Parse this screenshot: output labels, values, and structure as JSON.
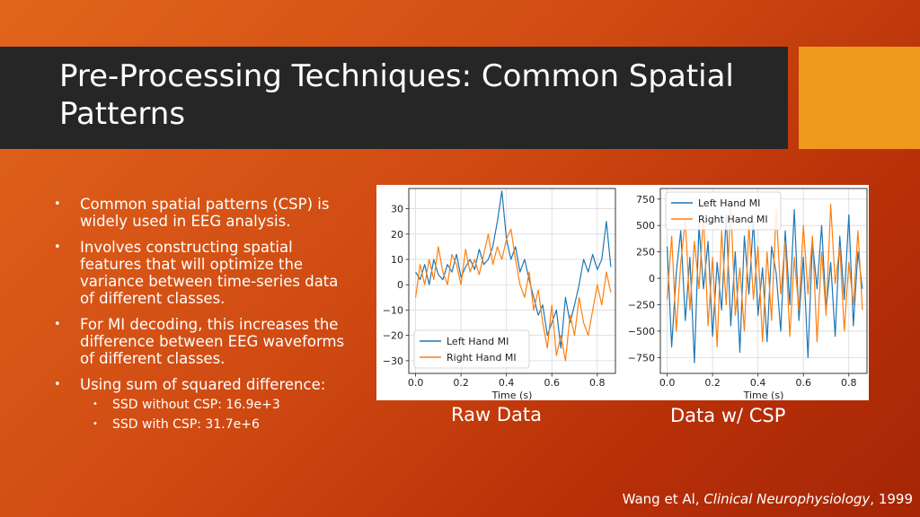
{
  "slide": {
    "title": "Pre-Processing Techniques: Common Spatial Patterns",
    "bullets": [
      {
        "text": "Common spatial patterns (CSP) is widely used in EEG analysis."
      },
      {
        "text": "Involves constructing spatial features that will optimize the variance between time-series data of different classes."
      },
      {
        "text": "For MI decoding, this increases the difference between EEG waveforms of different classes."
      },
      {
        "text": "Using sum of squared difference:"
      }
    ],
    "sub_bullets": [
      {
        "text": "SSD without CSP: 16.9e+3"
      },
      {
        "text": "SSD with CSP: 31.7e+6"
      }
    ],
    "bullet_glyph": "•",
    "caption_left": "Raw Data",
    "caption_right": "Data w/ CSP",
    "citation_prefix": "Wang et Al, ",
    "citation_journal": "Clinical Neurophysiology",
    "citation_suffix": ", 1999"
  },
  "colors": {
    "title_bar": "#262626",
    "accent": "#ef9a1c",
    "series_left": "#1f77b4",
    "series_right": "#ff7f0e"
  },
  "chart_data": [
    {
      "type": "line",
      "title": "",
      "xlabel": "Time (s)",
      "ylabel": "",
      "xlim": [
        -0.03,
        0.88
      ],
      "ylim": [
        -35,
        38
      ],
      "xticks": [
        0.0,
        0.2,
        0.4,
        0.6,
        0.8
      ],
      "xtick_labels": [
        "0.0",
        "0.2",
        "0.4",
        "0.6",
        "0.8"
      ],
      "yticks": [
        30,
        20,
        10,
        0,
        -10,
        -20,
        -30
      ],
      "ytick_labels": [
        "30",
        "20",
        "10",
        "0",
        "−10",
        "−20",
        "−30"
      ],
      "grid": true,
      "legend_position": "lower-left",
      "series": [
        {
          "name": "Left Hand MI",
          "x_start": 0.0,
          "x_step": 0.02,
          "values": [
            5,
            2,
            8,
            0,
            10,
            4,
            2,
            8,
            5,
            12,
            3,
            7,
            10,
            6,
            14,
            8,
            10,
            15,
            25,
            37,
            18,
            10,
            15,
            5,
            10,
            2,
            -5,
            -12,
            -8,
            -20,
            -15,
            -10,
            -25,
            -5,
            -15,
            -8,
            0,
            10,
            5,
            12,
            6,
            10,
            25,
            7
          ]
        },
        {
          "name": "Right Hand MI",
          "x_start": 0.0,
          "x_step": 0.02,
          "values": [
            -5,
            8,
            0,
            10,
            2,
            15,
            5,
            0,
            12,
            8,
            0,
            14,
            5,
            10,
            4,
            12,
            20,
            8,
            15,
            10,
            18,
            22,
            10,
            0,
            -5,
            5,
            -10,
            -2,
            -15,
            -25,
            -8,
            -28,
            -20,
            -30,
            -12,
            -20,
            -5,
            -15,
            -20,
            -10,
            0,
            -8,
            5,
            -3
          ]
        }
      ]
    },
    {
      "type": "line",
      "title": "",
      "xlabel": "Time (s)",
      "ylabel": "",
      "xlim": [
        -0.03,
        0.88
      ],
      "ylim": [
        -900,
        850
      ],
      "xticks": [
        0.0,
        0.2,
        0.4,
        0.6,
        0.8
      ],
      "xtick_labels": [
        "0.0",
        "0.2",
        "0.4",
        "0.6",
        "0.8"
      ],
      "yticks": [
        750,
        500,
        250,
        0,
        -250,
        -500,
        -750
      ],
      "ytick_labels": [
        "750",
        "500",
        "250",
        "0",
        "−250",
        "−500",
        "−750"
      ],
      "grid": true,
      "legend_position": "top-left",
      "series": [
        {
          "name": "Left Hand MI",
          "x_start": 0.0,
          "x_step": 0.02,
          "values": [
            300,
            -650,
            50,
            450,
            -400,
            200,
            -800,
            500,
            -100,
            350,
            -550,
            150,
            -300,
            600,
            -450,
            250,
            -700,
            400,
            -150,
            550,
            -350,
            100,
            -600,
            300,
            50,
            -500,
            450,
            -250,
            650,
            -400,
            200,
            -750,
            350,
            -100,
            500,
            -300,
            150,
            -550,
            400,
            -200,
            600,
            -450,
            250,
            -100
          ]
        },
        {
          "name": "Right Hand MI",
          "x_start": 0.0,
          "x_step": 0.02,
          "values": [
            -200,
            400,
            -500,
            150,
            550,
            -300,
            350,
            -100,
            600,
            -450,
            200,
            -650,
            450,
            -250,
            700,
            -350,
            100,
            -500,
            500,
            -200,
            300,
            -600,
            250,
            -400,
            650,
            -150,
            350,
            -550,
            200,
            -300,
            500,
            -150,
            400,
            -600,
            250,
            -350,
            700,
            -50,
            300,
            -500,
            150,
            -250,
            450,
            -300
          ]
        }
      ]
    }
  ]
}
